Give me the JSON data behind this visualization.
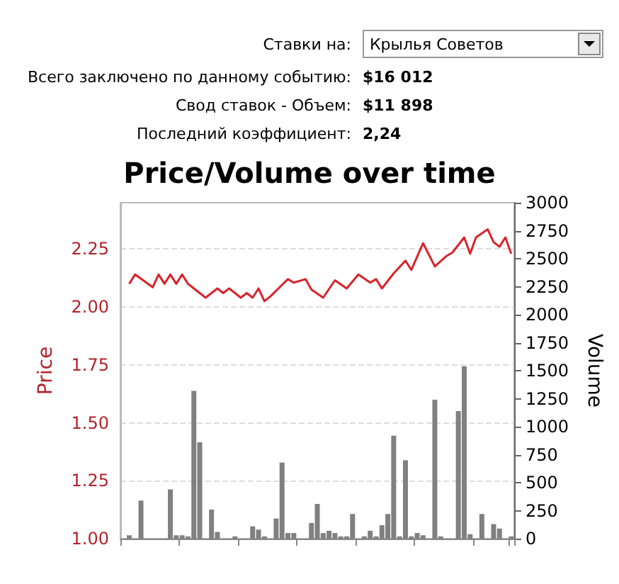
{
  "chart_data": {
    "type": "line",
    "title": "Price/Volume over time",
    "ylabel": "Price",
    "y2label": "Volume",
    "annotations": [
      "Ставки на:",
      "Крылья Советов",
      "Всего заключено по данному событию:",
      "$16 012",
      "Свод ставок - Объем:",
      "$11 898",
      "Последний коэффициент:",
      "2,24"
    ],
    "categories": [
      null,
      null,
      null,
      null,
      null,
      null,
      null,
      null,
      null,
      null,
      null,
      null,
      null,
      null,
      null,
      null,
      null,
      null,
      null,
      null,
      null,
      null,
      null,
      null,
      null,
      null,
      null,
      null,
      null,
      null,
      null,
      null,
      null,
      null,
      null,
      null,
      null,
      null,
      null,
      null,
      null,
      null,
      null,
      null,
      null,
      null,
      null,
      null,
      null,
      null,
      null,
      null,
      null,
      null,
      null,
      null,
      null,
      null,
      null,
      null,
      null,
      null,
      null,
      null,
      null,
      null,
      null
    ],
    "series": [
      {
        "color": "#d8242c",
        "values": [
          null,
          2.1,
          2.14,
          null,
          null,
          2.085,
          2.14,
          2.1,
          2.14,
          2.1,
          2.14,
          2.1,
          2.08,
          null,
          2.04,
          null,
          2.08,
          2.06,
          2.08,
          null,
          2.04,
          2.06,
          2.04,
          2.08,
          2.025,
          2.045,
          null,
          2.095,
          2.12,
          2.105,
          null,
          2.12,
          2.075,
          null,
          2.04,
          null,
          2.115,
          null,
          2.08,
          null,
          2.14,
          null,
          2.105,
          2.12,
          2.08,
          null,
          2.145,
          null,
          2.2,
          2.16,
          null,
          2.275,
          null,
          2.175,
          null,
          2.22,
          2.235,
          null,
          2.3,
          2.23,
          2.3,
          null,
          2.335,
          2.28,
          2.26,
          2.3,
          2.23
        ]
      },
      {
        "type": "bar",
        "axis": "y2",
        "color": "#808080",
        "values": [
          null,
          30,
          null,
          340,
          null,
          null,
          null,
          null,
          440,
          30,
          30,
          20,
          1320,
          860,
          null,
          260,
          60,
          null,
          null,
          20,
          null,
          null,
          110,
          80,
          20,
          null,
          180,
          680,
          50,
          50,
          null,
          null,
          140,
          310,
          50,
          70,
          50,
          20,
          20,
          220,
          null,
          20,
          70,
          20,
          120,
          220,
          920,
          20,
          700,
          20,
          50,
          30,
          null,
          1240,
          20,
          null,
          null,
          1140,
          1540,
          40,
          null,
          220,
          null,
          130,
          90,
          null,
          20
        ]
      }
    ],
    "ylim": [
      1,
      2.45
    ],
    "yticks": [
      {
        "value": 1,
        "label": "1.00"
      },
      {
        "value": 1.25,
        "label": "1.25"
      },
      {
        "value": 1.5,
        "label": "1.50"
      },
      {
        "value": 1.75,
        "label": "1.75"
      },
      {
        "value": 2,
        "label": "2.00"
      },
      {
        "value": 2.25,
        "label": "2.25"
      }
    ],
    "y2lim": [
      0,
      3000
    ],
    "y2ticks": [
      0,
      250,
      500,
      750,
      1000,
      1250,
      1500,
      1750,
      2000,
      2250,
      2500,
      2750,
      3000
    ],
    "grid": "y",
    "line_style": "solid",
    "tick_labels": "y"
  }
}
